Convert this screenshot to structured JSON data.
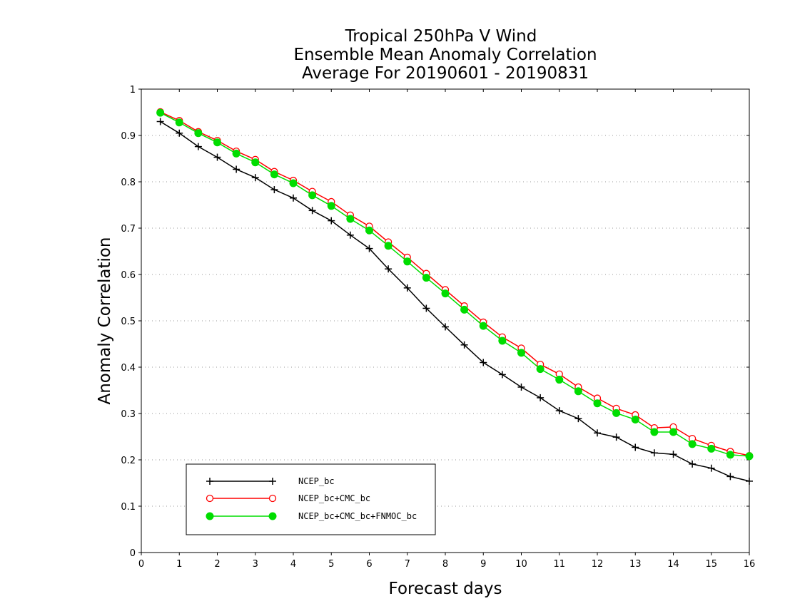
{
  "chart_data": {
    "type": "line",
    "title": [
      "Tropical 250hPa V Wind",
      "Ensemble Mean Anomaly Correlation",
      "Average For 20190601 - 20190831"
    ],
    "xlabel": "Forecast days",
    "ylabel": "Anomaly Correlation",
    "xlim": [
      0,
      16
    ],
    "ylim": [
      0,
      1
    ],
    "x_ticks": [
      "0",
      "1",
      "2",
      "3",
      "4",
      "5",
      "6",
      "7",
      "8",
      "9",
      "10",
      "11",
      "12",
      "13",
      "14",
      "15",
      "16"
    ],
    "y_ticks": [
      "0",
      "0.1",
      "0.2",
      "0.3",
      "0.4",
      "0.5",
      "0.6",
      "0.7",
      "0.8",
      "0.9",
      "1"
    ],
    "grid": "horizontal-dotted",
    "legend_position": "bottom-left",
    "x": [
      0.5,
      1,
      1.5,
      2,
      2.5,
      3,
      3.5,
      4,
      4.5,
      5,
      5.5,
      6,
      6.5,
      7,
      7.5,
      8,
      8.5,
      9,
      9.5,
      10,
      10.5,
      11,
      11.5,
      12,
      12.5,
      13,
      13.5,
      14,
      14.5,
      15,
      15.5,
      16
    ],
    "series": [
      {
        "name": "NCEP_bc",
        "color": "#000000",
        "marker": "plus",
        "values": [
          0.93,
          0.905,
          0.876,
          0.853,
          0.827,
          0.809,
          0.783,
          0.765,
          0.738,
          0.716,
          0.685,
          0.656,
          0.612,
          0.571,
          0.527,
          0.487,
          0.448,
          0.41,
          0.384,
          0.357,
          0.334,
          0.306,
          0.289,
          0.258,
          0.249,
          0.227,
          0.215,
          0.212,
          0.191,
          0.182,
          0.164,
          0.154
        ]
      },
      {
        "name": "NCEP_bc+CMC_bc",
        "color": "#ff0000",
        "marker": "open-circle",
        "values": [
          0.951,
          0.932,
          0.908,
          0.889,
          0.866,
          0.848,
          0.822,
          0.803,
          0.779,
          0.757,
          0.728,
          0.704,
          0.67,
          0.637,
          0.602,
          0.567,
          0.532,
          0.497,
          0.465,
          0.441,
          0.406,
          0.385,
          0.357,
          0.333,
          0.311,
          0.297,
          0.269,
          0.271,
          0.246,
          0.231,
          0.218,
          0.209
        ]
      },
      {
        "name": "NCEP_bc+CMC_bc+FNMOC_bc",
        "color": "#00dd00",
        "marker": "filled-circle",
        "values": [
          0.949,
          0.928,
          0.905,
          0.885,
          0.861,
          0.842,
          0.816,
          0.797,
          0.771,
          0.748,
          0.72,
          0.695,
          0.662,
          0.628,
          0.593,
          0.559,
          0.524,
          0.489,
          0.457,
          0.431,
          0.396,
          0.373,
          0.348,
          0.322,
          0.301,
          0.287,
          0.26,
          0.26,
          0.234,
          0.224,
          0.211,
          0.208
        ]
      }
    ]
  }
}
